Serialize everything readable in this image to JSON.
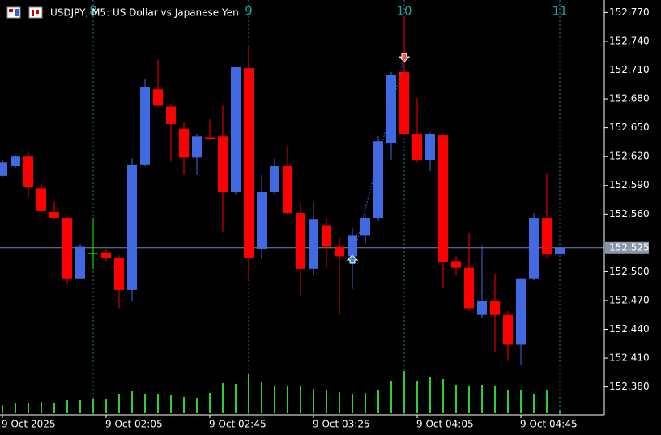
{
  "chart_data": {
    "type": "candlestick",
    "title": "USDJPY, M5:  US Dollar vs Japanese Yen",
    "categories": [
      "9 Oct 2025",
      null,
      null,
      null,
      null,
      null,
      null,
      null,
      "9 Oct 02:05",
      null,
      null,
      null,
      null,
      null,
      null,
      null,
      "9 Oct 02:45",
      null,
      null,
      null,
      null,
      null,
      null,
      null,
      "9 Oct 03:25",
      null,
      null,
      null,
      null,
      null,
      null,
      null,
      "9 Oct 04:05",
      null,
      null,
      null,
      null,
      null,
      null,
      null,
      "9 Oct 04:45",
      null,
      null,
      null
    ],
    "separators": [
      null,
      null,
      null,
      null,
      null,
      null,
      null,
      "8",
      null,
      null,
      null,
      null,
      null,
      null,
      null,
      null,
      null,
      null,
      null,
      "9",
      null,
      null,
      null,
      null,
      null,
      null,
      null,
      null,
      null,
      null,
      null,
      "10",
      null,
      null,
      null,
      null,
      null,
      null,
      null,
      null,
      null,
      null,
      null,
      "11"
    ],
    "open": [
      152.6,
      152.61,
      152.62,
      152.587,
      152.562,
      152.556,
      152.493,
      152.519,
      152.52,
      152.514,
      152.481,
      152.611,
      152.69,
      152.672,
      152.649,
      152.619,
      152.64,
      152.641,
      152.583,
      152.712,
      152.524,
      152.583,
      152.61,
      152.561,
      152.503,
      152.548,
      152.526,
      152.516,
      152.538,
      152.556,
      152.634,
      152.708,
      152.643,
      152.616,
      152.642,
      152.511,
      152.504,
      152.455,
      152.47,
      152.455,
      152.424,
      152.493,
      152.556,
      152.518
    ],
    "high": [
      152.616,
      152.622,
      152.626,
      152.592,
      152.573,
      152.557,
      152.529,
      152.556,
      152.524,
      152.517,
      152.618,
      152.701,
      152.721,
      152.675,
      152.656,
      152.643,
      152.659,
      152.673,
      152.713,
      152.735,
      152.601,
      152.618,
      152.631,
      152.572,
      152.573,
      152.556,
      152.536,
      152.546,
      152.559,
      152.641,
      152.708,
      152.766,
      152.681,
      152.645,
      152.643,
      152.516,
      152.54,
      152.527,
      152.498,
      152.459,
      152.493,
      152.561,
      152.602,
      152.525
    ],
    "low": [
      152.599,
      152.608,
      152.578,
      152.562,
      152.555,
      152.488,
      152.493,
      152.503,
      152.511,
      152.462,
      152.47,
      152.61,
      152.672,
      152.615,
      152.601,
      152.601,
      152.637,
      152.542,
      152.58,
      152.491,
      152.513,
      152.58,
      152.559,
      152.475,
      152.497,
      152.504,
      152.455,
      152.482,
      152.529,
      152.553,
      152.617,
      152.643,
      152.614,
      152.605,
      152.483,
      152.497,
      152.459,
      152.452,
      152.416,
      152.407,
      152.403,
      152.491,
      152.514,
      152.518
    ],
    "close": [
      152.614,
      152.62,
      152.588,
      152.563,
      152.556,
      152.493,
      152.526,
      152.519,
      152.514,
      152.481,
      152.611,
      152.692,
      152.673,
      152.654,
      152.619,
      152.641,
      152.638,
      152.583,
      152.713,
      152.514,
      152.583,
      152.61,
      152.561,
      152.503,
      152.555,
      152.526,
      152.516,
      152.538,
      152.556,
      152.636,
      152.705,
      152.643,
      152.616,
      152.643,
      152.51,
      152.504,
      152.462,
      152.47,
      152.455,
      152.424,
      152.493,
      152.556,
      152.518,
      152.525
    ],
    "volumes": [
      10,
      12,
      13,
      14,
      13,
      16,
      16,
      18,
      18,
      24,
      27,
      23,
      24,
      22,
      20,
      19,
      25,
      37,
      36,
      48,
      38,
      34,
      33,
      33,
      30,
      28,
      26,
      24,
      25,
      28,
      40,
      52,
      40,
      44,
      42,
      35,
      33,
      35,
      33,
      28,
      28,
      24,
      28,
      3
    ],
    "arrows": [
      null,
      null,
      null,
      null,
      null,
      null,
      null,
      null,
      null,
      null,
      null,
      null,
      null,
      null,
      null,
      null,
      null,
      null,
      null,
      null,
      null,
      null,
      null,
      null,
      null,
      null,
      null,
      {
        "dir": "buy",
        "price": 152.513
      },
      null,
      null,
      null,
      {
        "dir": "sell",
        "price": 152.723
      },
      null,
      null,
      null,
      null,
      null,
      null,
      null,
      null,
      null,
      null,
      null,
      null
    ],
    "current_price": {
      "value": 152.525,
      "label": "152.525"
    },
    "bull_color": "#4169e1",
    "bear_color": "#ff0000",
    "doji_color": "#00ff00",
    "volume_color": "#32cd32",
    "ylim": [
      152.351,
      152.783
    ],
    "yticks": [
      {
        "value": 152.77,
        "label": "152.770"
      },
      {
        "value": 152.74,
        "label": "152.740"
      },
      {
        "value": 152.71,
        "label": "152.710"
      },
      {
        "value": 152.68,
        "label": "152.680"
      },
      {
        "value": 152.65,
        "label": "152.650"
      },
      {
        "value": 152.62,
        "label": "152.620"
      },
      {
        "value": 152.59,
        "label": "152.590"
      },
      {
        "value": 152.56,
        "label": "152.560"
      },
      {
        "value": 152.5,
        "label": "152.500"
      },
      {
        "value": 152.47,
        "label": "152.470"
      },
      {
        "value": 152.44,
        "label": "152.440"
      },
      {
        "value": 152.41,
        "label": "152.410"
      },
      {
        "value": 152.38,
        "label": "152.380"
      }
    ]
  }
}
